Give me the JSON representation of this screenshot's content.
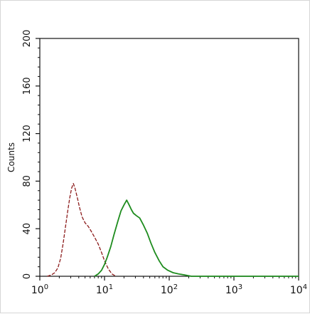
{
  "chart_data": {
    "type": "line",
    "title": "",
    "xlabel": "",
    "ylabel": "Counts",
    "x_scale": "log",
    "xlim": [
      1,
      10000
    ],
    "ylim": [
      0,
      200
    ],
    "x_ticks": [
      {
        "value": 1,
        "base": "10",
        "exp": "0"
      },
      {
        "value": 10,
        "base": "10",
        "exp": "1"
      },
      {
        "value": 100,
        "base": "10",
        "exp": "2"
      },
      {
        "value": 1000,
        "base": "10",
        "exp": "3"
      },
      {
        "value": 10000,
        "base": "10",
        "exp": "4"
      }
    ],
    "y_ticks": [
      0,
      40,
      80,
      120,
      160,
      200
    ],
    "grid": false,
    "series": [
      {
        "color": "#8b1a1a",
        "style": "dashed",
        "points": [
          [
            1.3,
            0
          ],
          [
            1.5,
            1
          ],
          [
            1.7,
            3
          ],
          [
            1.9,
            7
          ],
          [
            2.1,
            15
          ],
          [
            2.3,
            28
          ],
          [
            2.5,
            42
          ],
          [
            2.7,
            55
          ],
          [
            2.9,
            66
          ],
          [
            3.1,
            74
          ],
          [
            3.3,
            78
          ],
          [
            3.5,
            74
          ],
          [
            3.8,
            66
          ],
          [
            4.1,
            58
          ],
          [
            4.5,
            50
          ],
          [
            5.0,
            45
          ],
          [
            5.6,
            42
          ],
          [
            6.2,
            38
          ],
          [
            7.0,
            33
          ],
          [
            8.0,
            27
          ],
          [
            9.0,
            20
          ],
          [
            10.0,
            13
          ],
          [
            11.5,
            6
          ],
          [
            13.0,
            2
          ],
          [
            15.0,
            0
          ]
        ]
      },
      {
        "color": "#1e8c1e",
        "style": "solid",
        "points": [
          [
            7.0,
            0
          ],
          [
            8.0,
            2
          ],
          [
            9.0,
            5
          ],
          [
            10.0,
            10
          ],
          [
            11.0,
            16
          ],
          [
            12.5,
            25
          ],
          [
            14.0,
            35
          ],
          [
            16.0,
            46
          ],
          [
            18.0,
            55
          ],
          [
            20.0,
            60
          ],
          [
            22.0,
            64
          ],
          [
            24.0,
            60
          ],
          [
            26.0,
            56
          ],
          [
            28.0,
            53
          ],
          [
            31.0,
            51
          ],
          [
            35.0,
            49
          ],
          [
            40.0,
            43
          ],
          [
            46.0,
            36
          ],
          [
            52.0,
            28
          ],
          [
            60.0,
            20
          ],
          [
            70.0,
            13
          ],
          [
            80.0,
            8
          ],
          [
            95.0,
            5
          ],
          [
            115.0,
            3
          ],
          [
            140.0,
            2
          ],
          [
            175.0,
            1
          ],
          [
            220.0,
            0
          ],
          [
            400.0,
            0
          ],
          [
            10000.0,
            0
          ]
        ]
      }
    ]
  }
}
